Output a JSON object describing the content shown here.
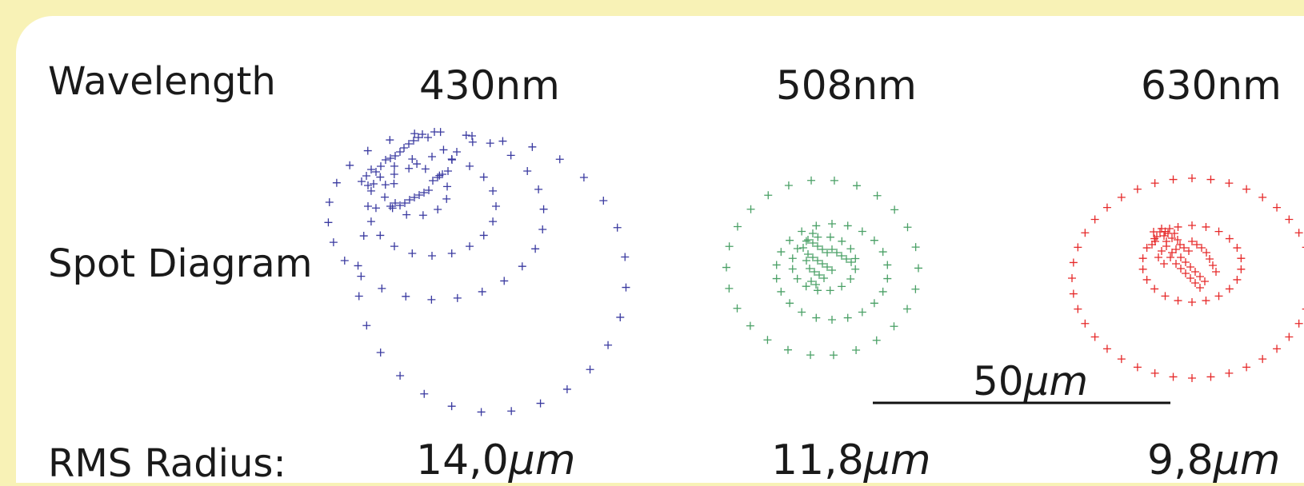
{
  "labels": {
    "wavelength": "Wavelength",
    "spot_diagram": "Spot Diagram",
    "rms_radius": "RMS Radius:"
  },
  "columns": [
    {
      "wavelength": "430nm",
      "rms_value": "14,0",
      "rms_unit": "μm",
      "color": "#3a3aa0"
    },
    {
      "wavelength": "508nm",
      "rms_value": "11,8",
      "rms_unit": "μm",
      "color": "#4aa066"
    },
    {
      "wavelength": "630nm",
      "rms_value": "9,8",
      "rms_unit": "μm",
      "color": "#e62a2a"
    }
  ],
  "scale_bar": {
    "value": "50",
    "unit": "μm"
  }
}
